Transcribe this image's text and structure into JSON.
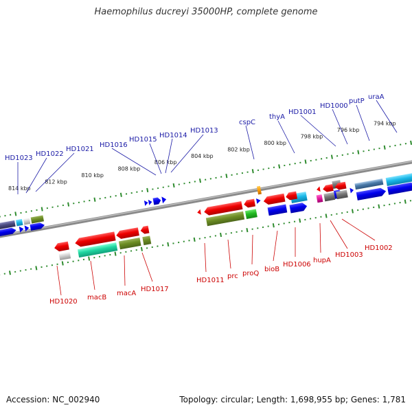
{
  "title": "Haemophilus ducreyi 35000HP, complete genome",
  "accession": "Accession: NC_002940",
  "summary": "Topology: circular; Length: 1,698,955 bp; Genes: 1,781",
  "colors": {
    "backbone": "#8a8a8a",
    "tick": "#2e8b2e",
    "label_top": "#1a1aa6",
    "label_bottom": "#cc0000"
  },
  "kbp_ticks": [
    "814 kbp",
    "812 kbp",
    "810 kbp",
    "808 kbp",
    "806 kbp",
    "804 kbp",
    "802 kbp",
    "800 kbp",
    "798 kbp",
    "796 kbp",
    "794 kbp"
  ],
  "top_labels": [
    "HD1023",
    "HD1022",
    "HD1021",
    "HD1016",
    "HD1015",
    "HD1014",
    "HD1013",
    "cspC",
    "thyA",
    "HD1001",
    "HD1000",
    "putP",
    "uraA"
  ],
  "bottom_labels": [
    "HD1020",
    "macB",
    "macA",
    "HD1017",
    "HD1011",
    "prc",
    "proQ",
    "bioB",
    "HD1006",
    "hupA",
    "HD1003",
    "HD1002"
  ]
}
